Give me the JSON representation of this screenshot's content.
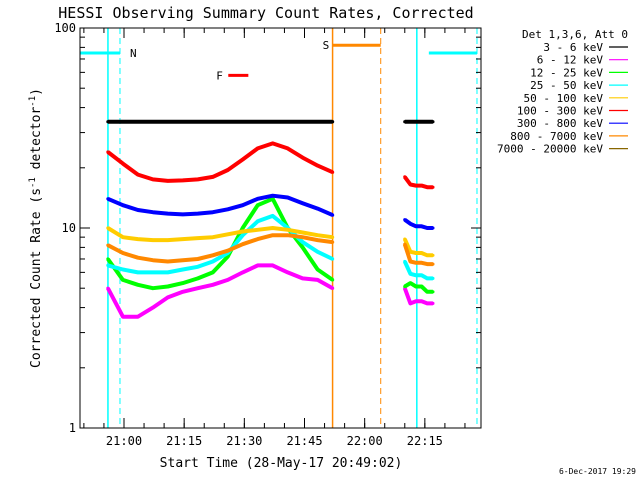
{
  "chart_data": {
    "type": "line",
    "title": "HESSI Observing Summary Count Rates, Corrected",
    "xlabel": "Start Time (28-May-17 20:49:02)",
    "ylabel": "Corrected Count Rate (s⁻¹ detector⁻¹)",
    "ylabel_parts": {
      "main": "Corrected Count Rate (s",
      "sup1": "-1",
      "mid": " detector",
      "sup2": "-1",
      "end": ")"
    },
    "yscale": "log",
    "ylim": [
      1,
      100
    ],
    "y_ticks": [
      "1",
      "10",
      "100"
    ],
    "xlim": [
      "20:49:02",
      "22:29:00"
    ],
    "x_ticks": [
      "21:00",
      "21:15",
      "21:30",
      "21:45",
      "22:00",
      "22:15"
    ],
    "legend_title": "Det 1,3,6, Att 0",
    "legend_position": "right, outside plot",
    "series": [
      {
        "name": "3 - 6 keV",
        "color": "#000000",
        "values": [
          34,
          34,
          34,
          34,
          34,
          34,
          34,
          34,
          34,
          34,
          34,
          34,
          34,
          34,
          34,
          34,
          34,
          34,
          34,
          34,
          34,
          34
        ]
      },
      {
        "name": "6 - 12 keV",
        "color": "#ff00ff",
        "values": [
          5,
          3.6,
          3.6,
          4,
          4.5,
          4.8,
          5,
          5.2,
          5.5,
          6,
          6.5,
          6.5,
          6,
          5.6,
          5.5,
          5,
          5,
          4.2,
          4.3,
          4.3,
          4.2,
          4.2
        ]
      },
      {
        "name": "12 - 25 keV",
        "color": "#00ff00",
        "values": [
          7,
          5.5,
          5.2,
          5,
          5.1,
          5.3,
          5.6,
          6,
          7.2,
          10,
          13,
          14,
          10,
          8,
          6.2,
          5.5,
          5.1,
          5.3,
          5.1,
          5.1,
          4.8,
          4.8
        ]
      },
      {
        "name": "25 - 50 keV",
        "color": "#00ffff",
        "values": [
          6.5,
          6.2,
          6,
          6,
          6,
          6.2,
          6.4,
          6.8,
          7.5,
          9.2,
          10.8,
          11.5,
          10,
          8.5,
          7.6,
          7,
          6.8,
          5.9,
          5.8,
          5.8,
          5.6,
          5.6
        ]
      },
      {
        "name": "50 - 100 keV",
        "color": "#ffcc00",
        "values": [
          10,
          9,
          8.8,
          8.7,
          8.7,
          8.8,
          8.9,
          9,
          9.3,
          9.6,
          9.8,
          10,
          9.8,
          9.5,
          9.2,
          9,
          8.8,
          7.6,
          7.5,
          7.5,
          7.3,
          7.3
        ]
      },
      {
        "name": "100 - 300 keV",
        "color": "#ff0000",
        "values": [
          24,
          21,
          18.5,
          17.5,
          17.2,
          17.3,
          17.5,
          18,
          19.5,
          22,
          25,
          26.5,
          25,
          22.5,
          20.5,
          19,
          18,
          16.5,
          16.3,
          16.3,
          16,
          16
        ]
      },
      {
        "name": "300 - 800 keV",
        "color": "#0000ff",
        "values": [
          14,
          13,
          12.3,
          12,
          11.8,
          11.7,
          11.8,
          12,
          12.4,
          13,
          14,
          14.5,
          14.2,
          13.3,
          12.5,
          11.6,
          11,
          10.5,
          10.2,
          10.2,
          10,
          10
        ]
      },
      {
        "name": "800 - 7000 keV",
        "color": "#ff8800",
        "values": [
          8.2,
          7.5,
          7.1,
          6.9,
          6.8,
          6.9,
          7,
          7.3,
          7.7,
          8.3,
          8.8,
          9.2,
          9.2,
          9,
          8.7,
          8.5,
          8.3,
          6.8,
          6.7,
          6.7,
          6.6,
          6.6
        ]
      },
      {
        "name": "7000 - 20000 keV",
        "color": "#886600",
        "values": []
      }
    ],
    "segments": [
      {
        "start": "20:56:00",
        "end": "21:52:00",
        "points": 16
      },
      {
        "start": "22:10:00",
        "end": "22:17:00",
        "points": 6
      }
    ],
    "markers": [
      {
        "label": "N",
        "color": "#00ffff",
        "bars": [
          [
            "20:49:02",
            "20:59:00"
          ],
          [
            "22:16:00",
            "22:28:00"
          ]
        ],
        "bar_y": 75,
        "dashed": [
          "20:59:00",
          "22:28:00"
        ],
        "solid": [
          "20:56:00",
          "22:13:00"
        ]
      },
      {
        "label": "F",
        "color": "#ff0000",
        "bars": [
          [
            "21:26:00",
            "21:31:00"
          ]
        ],
        "bar_y": 58
      },
      {
        "label": "S",
        "color": "#ff8800",
        "bars": [
          [
            "21:52:00",
            "22:04:00"
          ]
        ],
        "bar_y": 82,
        "solid": [
          "21:52:00"
        ],
        "dashed": [
          "22:04:00"
        ]
      }
    ],
    "grid": false
  },
  "footer": {
    "timestamp": "6-Dec-2017 19:29"
  }
}
